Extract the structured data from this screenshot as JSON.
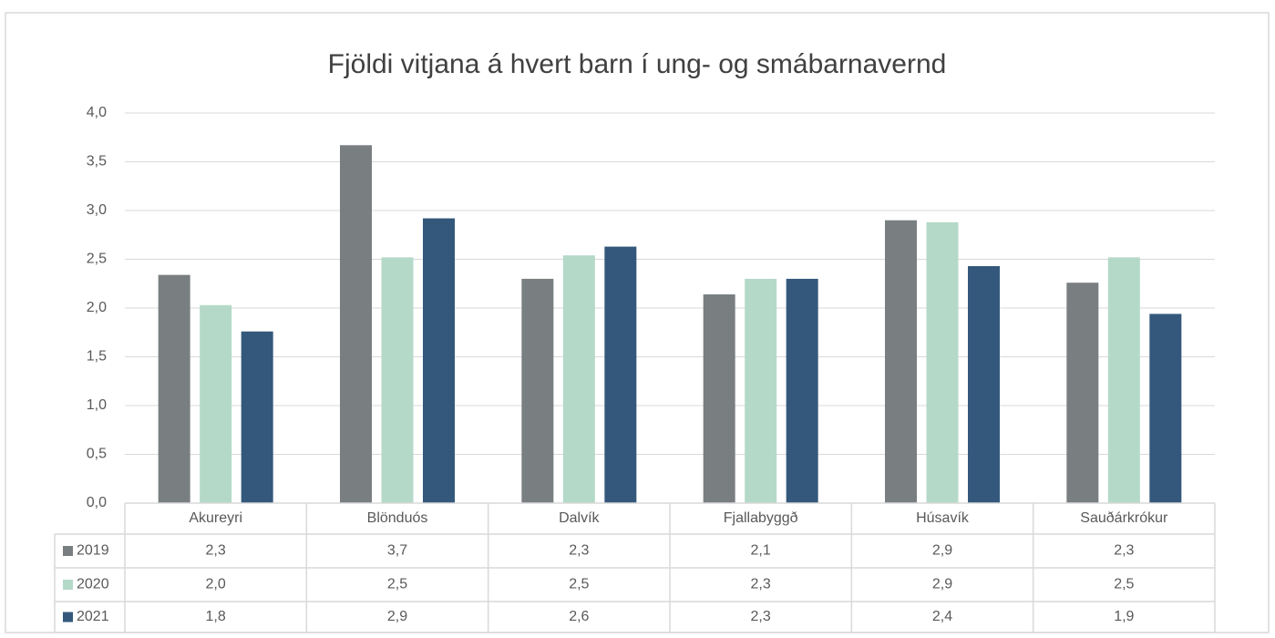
{
  "chart_data": {
    "type": "bar",
    "title": "Fjöldi vitjana á hvert barn í ung- og smábarnavernd",
    "categories": [
      "Akureyri",
      "Blönduós",
      "Dalvík",
      "Fjallabyggð",
      "Húsavík",
      "Sauðárkrókur"
    ],
    "series": [
      {
        "name": "2019",
        "color": "#797e81",
        "values": [
          2.34,
          3.67,
          2.3,
          2.14,
          2.9,
          2.26
        ],
        "value_labels": [
          "2,3",
          "3,7",
          "2,3",
          "2,1",
          "2,9",
          "2,3"
        ]
      },
      {
        "name": "2020",
        "color": "#b5d9c8",
        "values": [
          2.03,
          2.52,
          2.54,
          2.3,
          2.88,
          2.52
        ],
        "value_labels": [
          "2,0",
          "2,5",
          "2,5",
          "2,3",
          "2,9",
          "2,5"
        ]
      },
      {
        "name": "2021",
        "color": "#34587c",
        "values": [
          1.76,
          2.92,
          2.63,
          2.3,
          2.43,
          1.94
        ],
        "value_labels": [
          "1,8",
          "2,9",
          "2,6",
          "2,3",
          "2,4",
          "1,9"
        ]
      }
    ],
    "ylim": [
      0,
      4
    ],
    "yticks": [
      {
        "value": 0,
        "label": "0,0"
      },
      {
        "value": 0.5,
        "label": "0,5"
      },
      {
        "value": 1,
        "label": "1,0"
      },
      {
        "value": 1.5,
        "label": "1,5"
      },
      {
        "value": 2,
        "label": "2,0"
      },
      {
        "value": 2.5,
        "label": "2,5"
      },
      {
        "value": 3,
        "label": "3,0"
      },
      {
        "value": 3.5,
        "label": "3,5"
      },
      {
        "value": 4,
        "label": "4,0"
      }
    ],
    "grid": true
  }
}
